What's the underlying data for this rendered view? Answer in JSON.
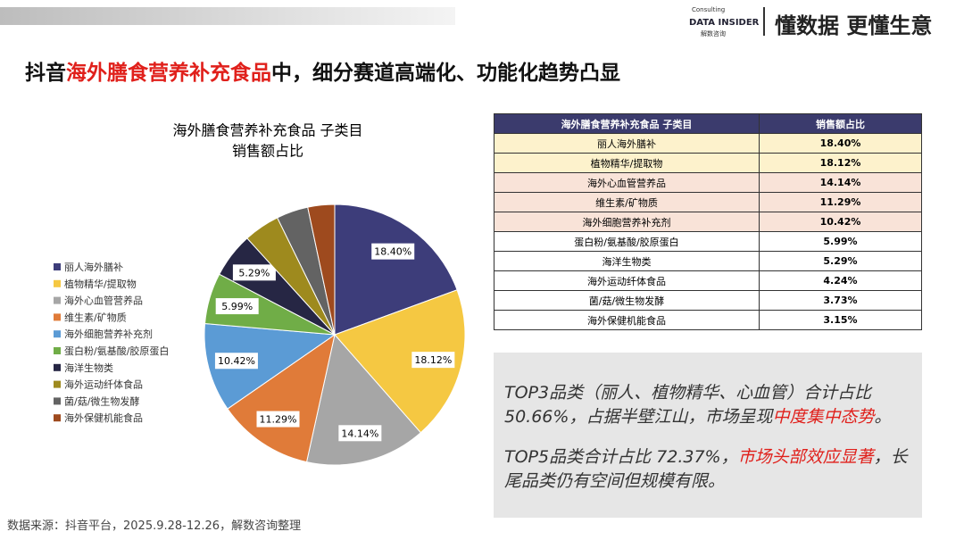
{
  "header": {
    "brand": "DATA INSIDER",
    "brand_sub": "解数咨询",
    "consulting": "Consulting",
    "slogan": "懂数据 更懂生意"
  },
  "title": {
    "pre": "抖音",
    "highlight": "海外膳食营养补充食品",
    "post": "中，细分赛道高端化、功能化趋势凸显"
  },
  "chart_data": {
    "type": "pie",
    "title": "海外膳食营养补充食品 子类目",
    "subtitle": "销售额占比",
    "categories": [
      "丽人海外膳补",
      "植物精华/提取物",
      "海外心血管营养品",
      "维生素/矿物质",
      "海外细胞营养补充剂",
      "蛋白粉/氨基酸/胶原蛋白",
      "海洋生物类",
      "海外运动纤体食品",
      "菌/菇/微生物发酵",
      "海外保健机能食品"
    ],
    "values": [
      18.4,
      18.12,
      14.14,
      11.29,
      10.42,
      5.99,
      5.29,
      4.24,
      3.73,
      3.15
    ],
    "value_labels": [
      "18.40%",
      "18.12%",
      "14.14%",
      "11.29%",
      "10.42%",
      "5.99%",
      "5.29%",
      null,
      null,
      null
    ],
    "colors": [
      "#3d3d7a",
      "#f5c842",
      "#a6a6a6",
      "#e07b39",
      "#5b9bd5",
      "#70ad47",
      "#262644",
      "#9e8a1e",
      "#636363",
      "#9e4a1e"
    ],
    "legend": "left"
  },
  "table": {
    "header": [
      "海外膳食营养补充食品 子类目",
      "销售额占比"
    ],
    "rows": [
      [
        "丽人海外膳补",
        "18.40%"
      ],
      [
        "植物精华/提取物",
        "18.12%"
      ],
      [
        "海外心血管营养品",
        "14.14%"
      ],
      [
        "维生素/矿物质",
        "11.29%"
      ],
      [
        "海外细胞营养补充剂",
        "10.42%"
      ],
      [
        "蛋白粉/氨基酸/胶原蛋白",
        "5.99%"
      ],
      [
        "海洋生物类",
        "5.29%"
      ],
      [
        "海外运动纤体食品",
        "4.24%"
      ],
      [
        "菌/菇/微生物发酵",
        "3.73%"
      ],
      [
        "海外保健机能食品",
        "3.15%"
      ]
    ]
  },
  "note": {
    "p1": [
      "TOP3品类（丽人、植物精华、心血管）合计占比50.66%，占据半壁江山，市场呈现",
      "中度集中态势",
      "。"
    ],
    "p2": [
      "TOP5品类合计占比 72.37%，",
      "市场头部效应显著",
      "，长尾品类仍有空间但规模有限。"
    ]
  },
  "source": "数据来源：抖音平台，2025.9.28-12.26，解数咨询整理"
}
